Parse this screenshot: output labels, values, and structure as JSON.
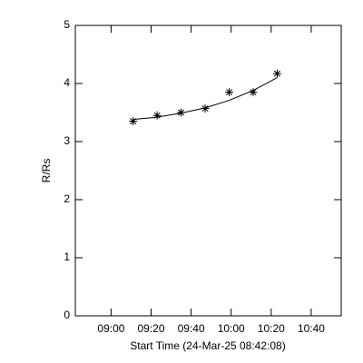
{
  "chart_data": {
    "type": "scatter",
    "xlabel": "Start Time (24-Mar-25 08:42:08)",
    "ylabel": "R/Rs",
    "xlim": [
      522.13,
      655
    ],
    "xticks": [
      {
        "value": 540,
        "label": "09:00"
      },
      {
        "value": 560,
        "label": "09:20"
      },
      {
        "value": 580,
        "label": "09:40"
      },
      {
        "value": 600,
        "label": "10:00"
      },
      {
        "value": 620,
        "label": "10:20"
      },
      {
        "value": 640,
        "label": "10:40"
      }
    ],
    "ylim": [
      0,
      5
    ],
    "yticks": [
      0,
      1,
      2,
      3,
      4,
      5
    ],
    "series": [
      {
        "kind": "points",
        "color": "#000000",
        "x": [
          551,
          563,
          575,
          587,
          599,
          611,
          623
        ],
        "values": [
          3.35,
          3.45,
          3.5,
          3.57,
          3.85,
          3.85,
          4.17
        ]
      },
      {
        "kind": "fit",
        "color": "#000000",
        "x": [
          551,
          563,
          575,
          587,
          599,
          611,
          623
        ],
        "values": [
          3.38,
          3.42,
          3.49,
          3.58,
          3.71,
          3.88,
          4.1
        ]
      }
    ]
  }
}
